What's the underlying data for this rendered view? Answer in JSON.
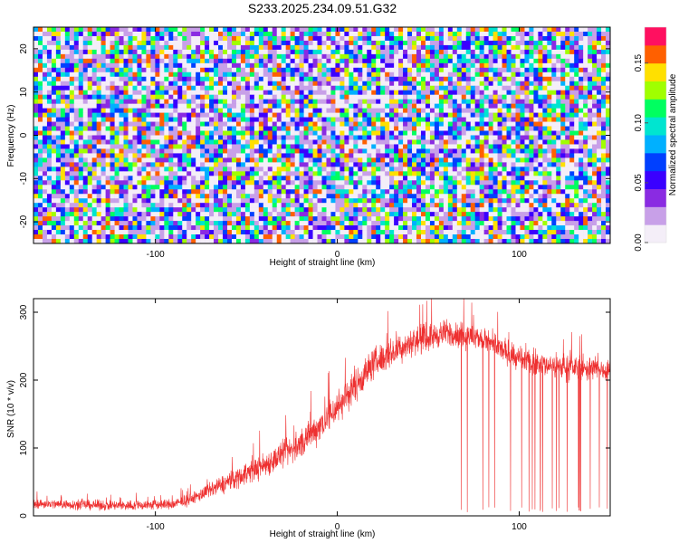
{
  "title": "S233.2025.234.09.51.G32",
  "chart_data": [
    {
      "type": "heatmap",
      "xlabel": "Height of straight line (km)",
      "ylabel": "Frequency (Hz)",
      "xlim": [
        -167,
        150
      ],
      "ylim": [
        -25,
        25
      ],
      "xticks": [
        -100,
        0,
        100
      ],
      "yticks": [
        -20,
        -10,
        0,
        10,
        20
      ],
      "colorbar": {
        "label": "Normalized spectral amplitude",
        "range": [
          0,
          0.18
        ],
        "ticks": [
          "0.00",
          "0.05",
          "0.10",
          "0.15"
        ]
      },
      "colormap": [
        "#f4eef8",
        "#c8a0e8",
        "#8a2be2",
        "#3a00ff",
        "#0040ff",
        "#00b0ff",
        "#00e5d0",
        "#00ff60",
        "#a0ff00",
        "#ffe000",
        "#ff6000",
        "#ff1060"
      ]
    },
    {
      "type": "line",
      "xlabel": "Height of straight line (km)",
      "ylabel": "SNR (10 * v/v)",
      "xlim": [
        -167,
        150
      ],
      "ylim": [
        0,
        320
      ],
      "xticks": [
        -100,
        0,
        100
      ],
      "yticks": [
        0,
        100,
        200,
        300
      ],
      "color": "#ee3030",
      "trend": {
        "x": [
          -167,
          -120,
          -90,
          -80,
          -60,
          -40,
          -20,
          0,
          20,
          40,
          60,
          70,
          80,
          90,
          100,
          120,
          150
        ],
        "y": [
          18,
          15,
          17,
          25,
          50,
          75,
          105,
          160,
          225,
          255,
          270,
          265,
          260,
          245,
          230,
          220,
          215
        ]
      },
      "noise": {
        "x": [
          -167,
          -80,
          -60,
          -20,
          0,
          40,
          60,
          150
        ],
        "amp": [
          10,
          12,
          22,
          32,
          38,
          30,
          28,
          26
        ]
      },
      "dropout_region": [
        66,
        150
      ]
    }
  ]
}
